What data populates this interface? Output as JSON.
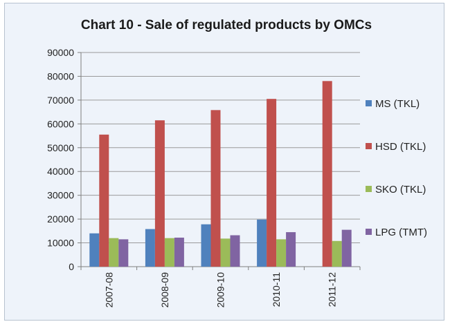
{
  "chart_data": {
    "type": "bar",
    "title": "Chart 10 - Sale of regulated products by OMCs",
    "xlabel": "",
    "ylabel": "",
    "categories": [
      "2007-08",
      "2008-09",
      "2009-10",
      "2010-11",
      "2011-12"
    ],
    "ylim": [
      0,
      90000
    ],
    "yticks": [
      0,
      10000,
      20000,
      30000,
      40000,
      50000,
      60000,
      70000,
      80000,
      90000
    ],
    "grid": true,
    "legend_position": "right",
    "series": [
      {
        "name": "MS (TKL)",
        "color": "#4f81bd",
        "values": [
          14000,
          15800,
          17800,
          19800,
          null
        ]
      },
      {
        "name": "HSD (TKL)",
        "color": "#c0504d",
        "values": [
          55500,
          61500,
          65800,
          70500,
          78000
        ]
      },
      {
        "name": "SKO (TKL)",
        "color": "#9bbb59",
        "values": [
          12000,
          12000,
          11800,
          11500,
          10800
        ]
      },
      {
        "name": "LPG (TMT)",
        "color": "#8064a2",
        "values": [
          11500,
          12200,
          13200,
          14500,
          15500
        ]
      }
    ]
  }
}
